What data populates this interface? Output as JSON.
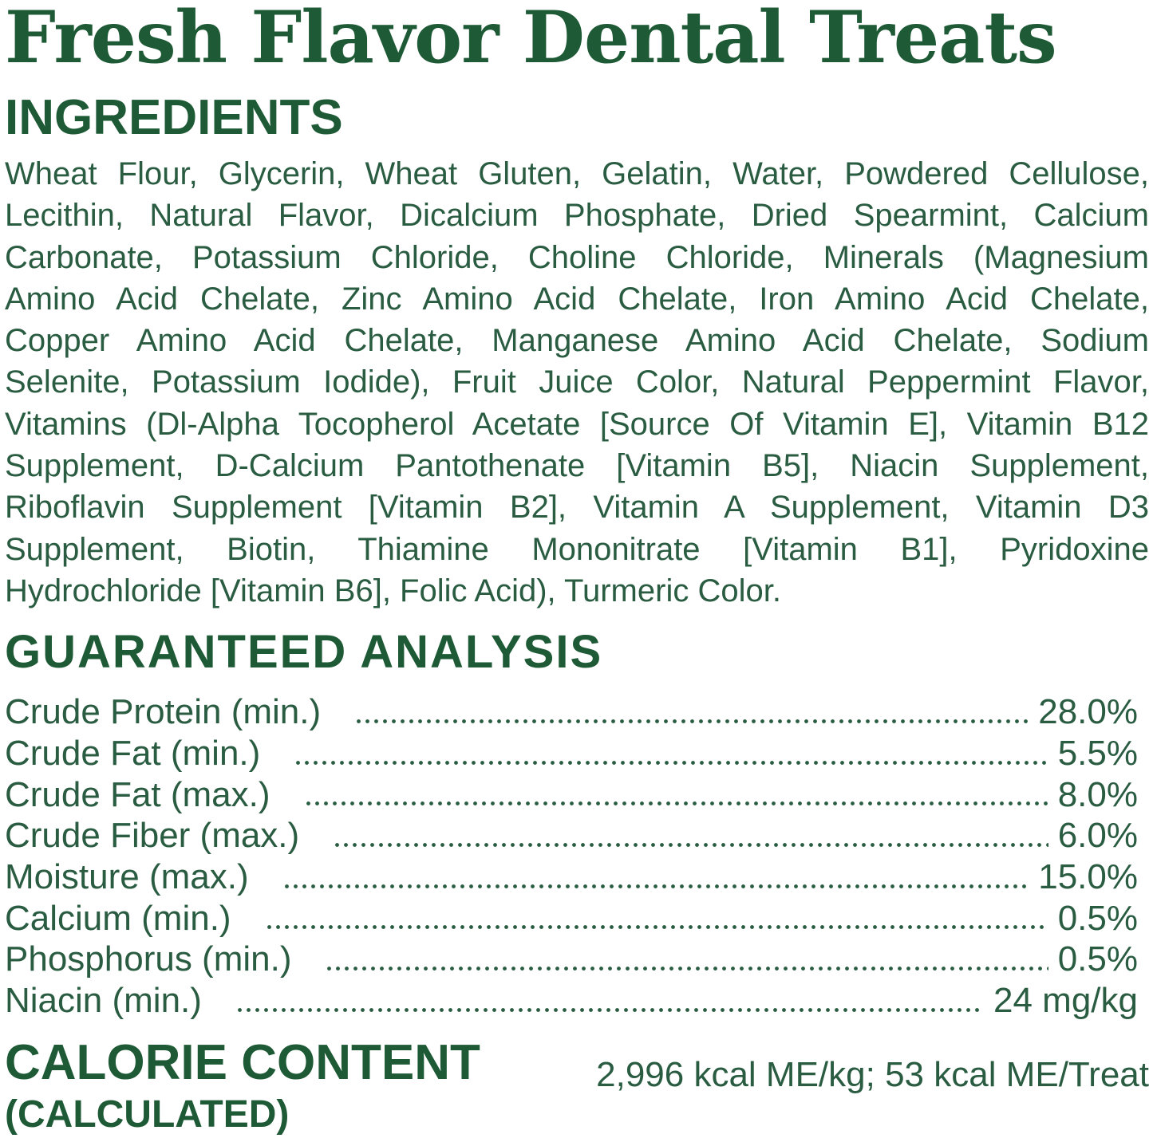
{
  "colors": {
    "heading_green": "#1d5a35",
    "body_green": "#2a5c42",
    "background": "#ffffff"
  },
  "title": "Fresh Flavor Dental Treats",
  "ingredients": {
    "heading": "INGREDIENTS",
    "lines": [
      "Wheat Flour, Glycerin, Wheat Gluten, Gelatin, Water, Powdered Cellulose,",
      "Lecithin, Natural Flavor, Dicalcium Phosphate, Dried Spearmint, Calcium",
      "Carbonate, Potassium Chloride, Choline Chloride, Minerals (Magnesium",
      "Amino Acid Chelate, Zinc Amino Acid Chelate, Iron Amino Acid Chelate,",
      "Copper Amino Acid Chelate, Manganese Amino Acid Chelate, Sodium",
      "Selenite, Potassium Iodide), Fruit Juice Color, Natural Peppermint Flavor,",
      "Vitamins (Dl-Alpha Tocopherol Acetate [Source Of Vitamin E], Vitamin B12",
      "Supplement, D-Calcium Pantothenate [Vitamin B5], Niacin Supplement,",
      "Riboflavin Supplement [Vitamin B2], Vitamin A Supplement, Vitamin D3",
      "Supplement, Biotin, Thiamine Mononitrate [Vitamin B1], Pyridoxine",
      "Hydrochloride [Vitamin B6], Folic Acid), Turmeric Color."
    ]
  },
  "guaranteed_analysis": {
    "heading": "GUARANTEED ANALYSIS",
    "rows": [
      {
        "label": "Crude Protein (min.)",
        "value": "28.0%"
      },
      {
        "label": "Crude Fat (min.)",
        "value": "5.5%"
      },
      {
        "label": "Crude Fat (max.)",
        "value": "8.0%"
      },
      {
        "label": "Crude Fiber (max.)",
        "value": "6.0%"
      },
      {
        "label": "Moisture (max.)",
        "value": "15.0%"
      },
      {
        "label": "Calcium (min.)",
        "value": "0.5%"
      },
      {
        "label": "Phosphorus (min.)",
        "value": "0.5%"
      },
      {
        "label": "Niacin (min.)",
        "value": "24 mg/kg"
      }
    ]
  },
  "calorie_content": {
    "heading": "CALORIE CONTENT",
    "subheading": "(CALCULATED)",
    "value": "2,996 kcal ME/kg; 53 kcal ME/Treat"
  }
}
